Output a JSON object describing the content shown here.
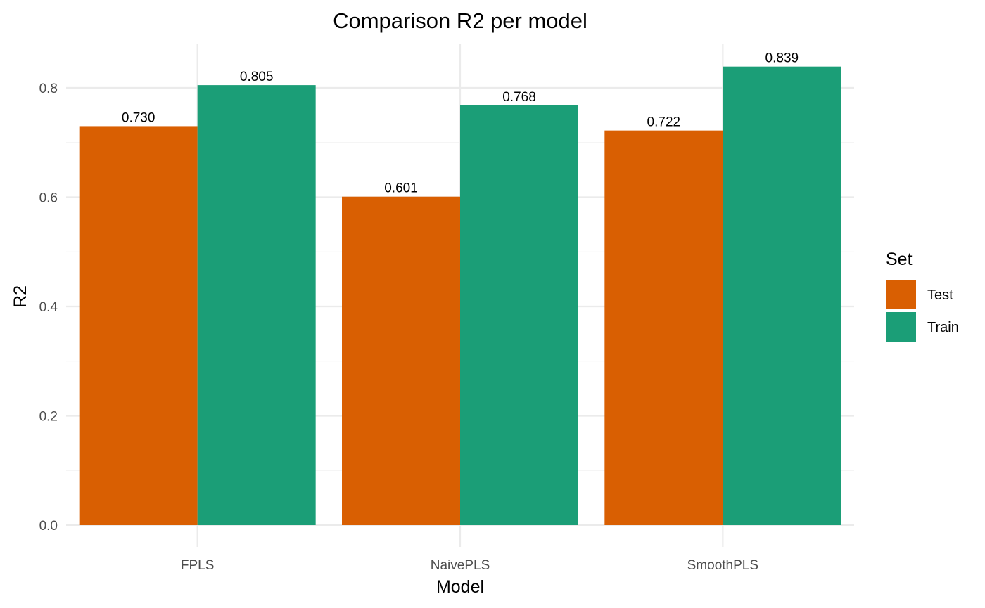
{
  "chart_data": {
    "type": "bar",
    "title": "Comparison R2 per model",
    "xlabel": "Model",
    "ylabel": "R2",
    "categories": [
      "FPLS",
      "NaivePLS",
      "SmoothPLS"
    ],
    "series": [
      {
        "name": "Test",
        "color": "#D95F02",
        "values": [
          0.73,
          0.601,
          0.722
        ],
        "labels": [
          "0.730",
          "0.601",
          "0.722"
        ]
      },
      {
        "name": "Train",
        "color": "#1B9E77",
        "values": [
          0.805,
          0.768,
          0.839
        ],
        "labels": [
          "0.805",
          "0.768",
          "0.839"
        ]
      }
    ],
    "ylim": [
      0,
      0.88
    ],
    "yticks": [
      0.0,
      0.2,
      0.4,
      0.6,
      0.8
    ],
    "ytick_labels": [
      "0.0",
      "0.2",
      "0.4",
      "0.6",
      "0.8"
    ],
    "grid": true,
    "legend": {
      "title": "Set",
      "position": "right"
    }
  }
}
